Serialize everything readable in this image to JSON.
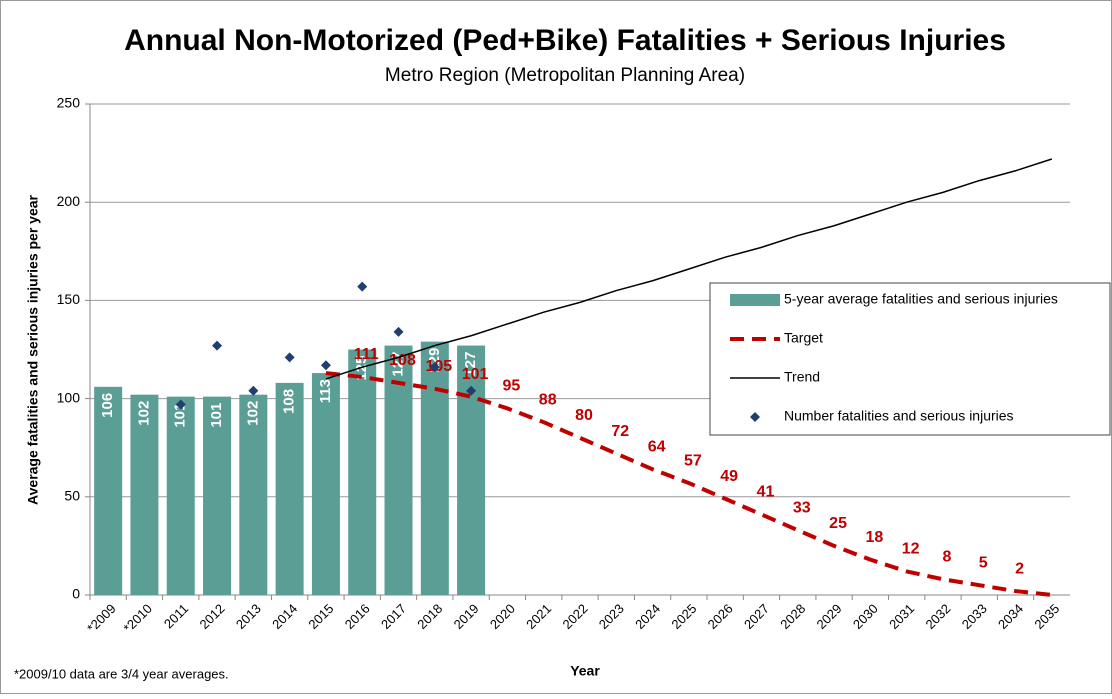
{
  "chart_data": {
    "type": "bar",
    "title": "Annual Non-Motorized (Ped+Bike) Fatalities + Serious Injuries",
    "subtitle": "Metro Region (Metropolitan Planning Area)",
    "y_label": "Average fatalities and serious injuries  per year",
    "x_label": "Year",
    "footnote": "*2009/10 data are 3/4 year averages.",
    "categories": [
      "*2009",
      "*2010",
      "2011",
      "2012",
      "2013",
      "2014",
      "2015",
      "2016",
      "2017",
      "2018",
      "2019",
      "2020",
      "2021",
      "2022",
      "2023",
      "2024",
      "2025",
      "2026",
      "2027",
      "2028",
      "2029",
      "2030",
      "2031",
      "2032",
      "2033",
      "2034",
      "2035"
    ],
    "series": [
      {
        "name": "5-year average fatalities and serious injuries",
        "type": "bar",
        "color": "#5b9e96",
        "values": [
          106,
          102,
          101,
          101,
          102,
          108,
          113,
          125,
          127,
          129,
          127,
          null,
          null,
          null,
          null,
          null,
          null,
          null,
          null,
          null,
          null,
          null,
          null,
          null,
          null,
          null,
          null
        ]
      },
      {
        "name": "Target",
        "type": "line",
        "dashed": true,
        "color": "#c00000",
        "values": [
          null,
          null,
          null,
          null,
          null,
          null,
          113,
          111,
          108,
          105,
          101,
          95,
          88,
          80,
          72,
          64,
          57,
          49,
          41,
          33,
          25,
          18,
          12,
          8,
          5,
          2,
          0
        ],
        "value_labels": [
          null,
          null,
          null,
          null,
          null,
          null,
          null,
          111,
          108,
          105,
          101,
          95,
          88,
          80,
          72,
          64,
          57,
          49,
          41,
          33,
          25,
          18,
          12,
          8,
          5,
          2,
          null
        ]
      },
      {
        "name": "Trend",
        "type": "line",
        "color": "#000000",
        "values": [
          null,
          null,
          null,
          null,
          null,
          null,
          110,
          116,
          121,
          127,
          132,
          138,
          144,
          149,
          155,
          160,
          166,
          172,
          177,
          183,
          188,
          194,
          200,
          205,
          211,
          216,
          222
        ]
      },
      {
        "name": "Number fatalities and serious injuries",
        "type": "scatter",
        "color": "#1f3f6e",
        "values": [
          null,
          null,
          97,
          127,
          104,
          121,
          117,
          157,
          134,
          116,
          104,
          null,
          null,
          null,
          null,
          null,
          null,
          null,
          null,
          null,
          null,
          null,
          null,
          null,
          null,
          null,
          null
        ]
      }
    ],
    "ylim": [
      0,
      250
    ],
    "yticks": [
      0,
      50,
      100,
      150,
      200,
      250
    ],
    "grid": true,
    "legend": "right"
  }
}
